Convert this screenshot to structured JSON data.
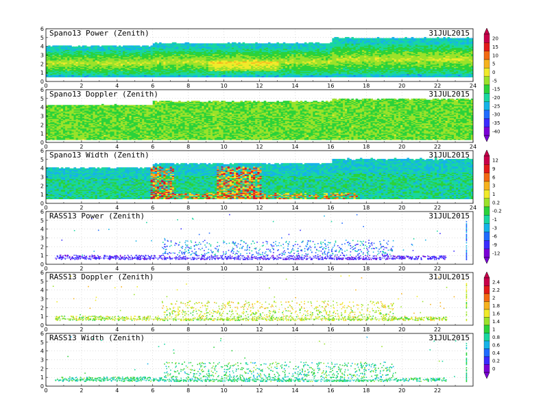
{
  "figure": {
    "date_label": "31JUL2015",
    "x_ticks": [
      "0",
      "2",
      "4",
      "6",
      "8",
      "10",
      "12",
      "14",
      "16",
      "18",
      "20",
      "22",
      "24"
    ],
    "x_ticks_short": [
      "0",
      "2",
      "4",
      "6",
      "8",
      "10",
      "12",
      "14",
      "16",
      "18",
      "20",
      "22"
    ],
    "y_ticks": [
      "0",
      "1",
      "2",
      "3",
      "4",
      "5",
      "6"
    ]
  },
  "chart_data": [
    {
      "type": "heatmap",
      "title": "Spano13 Power (Zenith)",
      "xlim": [
        0,
        24
      ],
      "ylim": [
        0,
        6
      ],
      "x_tick_labels": [
        "0",
        "2",
        "4",
        "6",
        "8",
        "10",
        "12",
        "14",
        "16",
        "18",
        "20",
        "22",
        "24"
      ],
      "coverage": {
        "bottom": 0.5,
        "top_start": 4.0,
        "top_after_6h": 4.3,
        "top_after_16h": 4.9
      },
      "field": "power",
      "colorbar": [
        "20",
        "15",
        "10",
        "5",
        "0",
        "-5",
        "-15",
        "-20",
        "-25",
        "-30",
        "-35",
        "-40"
      ]
    },
    {
      "type": "heatmap",
      "title": "Spano13 Doppler (Zenith)",
      "xlim": [
        0,
        24
      ],
      "ylim": [
        0,
        6
      ],
      "x_tick_labels": [
        "0",
        "2",
        "4",
        "6",
        "8",
        "10",
        "12",
        "14",
        "16",
        "18",
        "20",
        "22",
        "24"
      ],
      "coverage": {
        "bottom": 0.3,
        "top_start": 4.2,
        "top_after_6h": 4.6,
        "top_after_16h": 4.9
      },
      "field": "doppler"
    },
    {
      "type": "heatmap",
      "title": "Spano13 Width (Zenith)",
      "xlim": [
        0,
        24
      ],
      "ylim": [
        0,
        6
      ],
      "x_tick_labels": [
        "0",
        "2",
        "4",
        "6",
        "8",
        "10",
        "12",
        "14",
        "16",
        "18",
        "20",
        "22",
        "24"
      ],
      "coverage": {
        "bottom": 0.5,
        "top_start": 4.0,
        "top_after_6h": 4.5,
        "top_after_16h": 5.0
      },
      "field": "width",
      "colorbar": [
        "12",
        "9",
        "6",
        "3",
        "1",
        "0.2",
        "-0.2",
        "-1",
        "-3",
        "-6",
        "-9",
        "-12"
      ]
    },
    {
      "type": "scatter",
      "title": "RASS13 Power (Zenith)",
      "xlim": [
        0,
        24
      ],
      "ylim": [
        0,
        6
      ],
      "x_tick_labels": [
        "0",
        "2",
        "4",
        "6",
        "8",
        "10",
        "12",
        "14",
        "16",
        "18",
        "20",
        "22"
      ],
      "field": "rass_power"
    },
    {
      "type": "scatter",
      "title": "RASS13 Doppler (Zenith)",
      "xlim": [
        0,
        24
      ],
      "ylim": [
        0,
        6
      ],
      "x_tick_labels": [
        "0",
        "2",
        "4",
        "6",
        "8",
        "10",
        "12",
        "14",
        "16",
        "18",
        "20",
        "22"
      ],
      "field": "rass_doppler",
      "colorbar": [
        "2.4",
        "2.2",
        "2",
        "1.8",
        "1.6",
        "1.4",
        "1",
        "0.8",
        "0.6",
        "0.4",
        "0.2",
        "0"
      ]
    },
    {
      "type": "scatter",
      "title": "RASS13 Width (Zenith)",
      "xlim": [
        0,
        24
      ],
      "ylim": [
        0,
        6
      ],
      "x_tick_labels": [
        "0",
        "2",
        "4",
        "6",
        "8",
        "10",
        "12",
        "14",
        "16",
        "18",
        "20",
        "22"
      ],
      "field": "rass_width"
    }
  ],
  "colors": {
    "palette": [
      "#7b00d6",
      "#3a2bff",
      "#1f6cff",
      "#15b3e8",
      "#19d6a0",
      "#2bd23a",
      "#9be22a",
      "#f0ea2a",
      "#f6b21e",
      "#f26a12",
      "#e21a1a",
      "#c8004a"
    ]
  }
}
